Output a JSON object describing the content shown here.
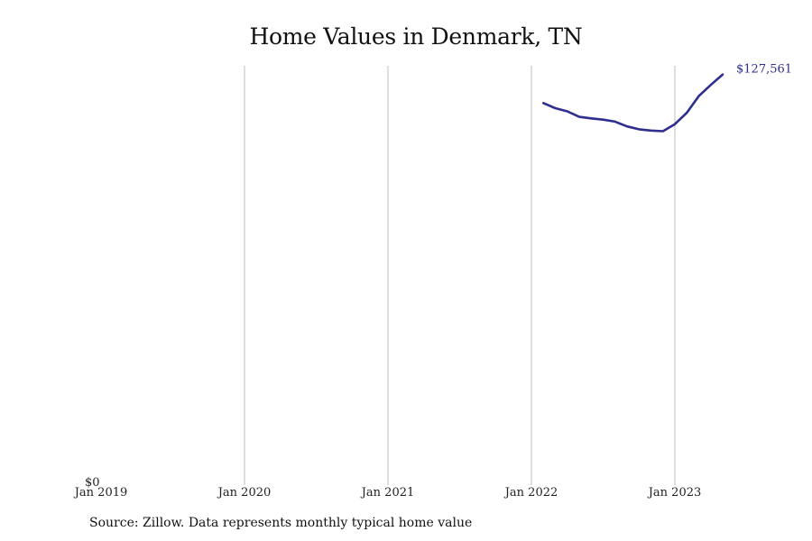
{
  "chart_data": {
    "type": "line",
    "title": "Home Values in Denmark, TN",
    "xlabel": "",
    "ylabel": "",
    "x_ticks": [
      "Jan 2019",
      "Jan 2020",
      "Jan 2021",
      "Jan 2022",
      "Jan 2023"
    ],
    "y_tick_label": "$0",
    "ylim": [
      0,
      130000
    ],
    "grid": "vertical",
    "line_color": "#2e2e8f",
    "end_label": "$127,561",
    "series": [
      {
        "values": [
          {
            "x": "2022-02",
            "y": 118600
          },
          {
            "x": "2022-03",
            "y": 117000
          },
          {
            "x": "2022-04",
            "y": 116000
          },
          {
            "x": "2022-05",
            "y": 114300
          },
          {
            "x": "2022-06",
            "y": 113800
          },
          {
            "x": "2022-07",
            "y": 113400
          },
          {
            "x": "2022-08",
            "y": 112800
          },
          {
            "x": "2022-09",
            "y": 111300
          },
          {
            "x": "2022-10",
            "y": 110400
          },
          {
            "x": "2022-11",
            "y": 110000
          },
          {
            "x": "2022-12",
            "y": 109800
          },
          {
            "x": "2023-01",
            "y": 112000
          },
          {
            "x": "2023-02",
            "y": 115600
          },
          {
            "x": "2023-03",
            "y": 120800
          },
          {
            "x": "2023-04",
            "y": 124300
          },
          {
            "x": "2023-05",
            "y": 127561
          }
        ]
      }
    ]
  },
  "source_note": "Source: Zillow. Data represents monthly typical home value"
}
